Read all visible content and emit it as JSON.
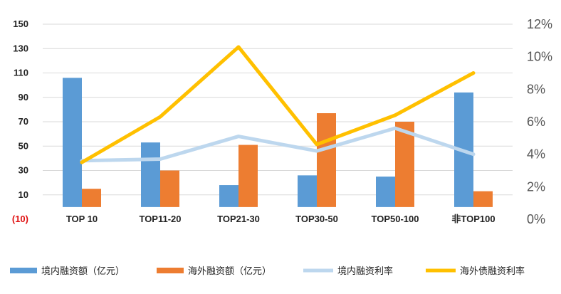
{
  "chart_data": {
    "type": "bar",
    "categories": [
      "TOP 10",
      "TOP11-20",
      "TOP21-30",
      "TOP30-50",
      "TOP50-100",
      "非TOP100"
    ],
    "left_axis": {
      "ylim": [
        -10,
        150
      ],
      "ticks": [
        -10,
        10,
        30,
        50,
        70,
        90,
        110,
        130,
        150
      ],
      "tick_labels": [
        "(10)",
        "10",
        "30",
        "50",
        "70",
        "90",
        "110",
        "130",
        "150"
      ],
      "negative_label_color": "#e01010"
    },
    "right_axis": {
      "ylim": [
        0,
        12
      ],
      "ticks": [
        0,
        2,
        4,
        6,
        8,
        10,
        12
      ],
      "tick_labels": [
        "0%",
        "2%",
        "4%",
        "6%",
        "8%",
        "10%",
        "12%"
      ]
    },
    "series": [
      {
        "name": "境内融资额（亿元）",
        "type": "bar",
        "axis": "left",
        "color": "#5b9bd5",
        "values": [
          106,
          53,
          18,
          26,
          25,
          94
        ]
      },
      {
        "name": "海外融资额（亿元）",
        "type": "bar",
        "axis": "left",
        "color": "#ed7d31",
        "values": [
          15,
          30,
          51,
          77,
          70,
          13
        ]
      },
      {
        "name": "境内融资利率",
        "type": "line",
        "axis": "right",
        "color": "#bdd7ee",
        "values": [
          3.6,
          3.7,
          5.1,
          4.2,
          5.6,
          4.0
        ]
      },
      {
        "name": "海外债融资利率",
        "type": "line",
        "axis": "right",
        "color": "#ffc000",
        "values": [
          3.5,
          6.3,
          10.6,
          4.6,
          6.4,
          9.0
        ]
      }
    ],
    "grid": true,
    "legend_position": "bottom"
  }
}
